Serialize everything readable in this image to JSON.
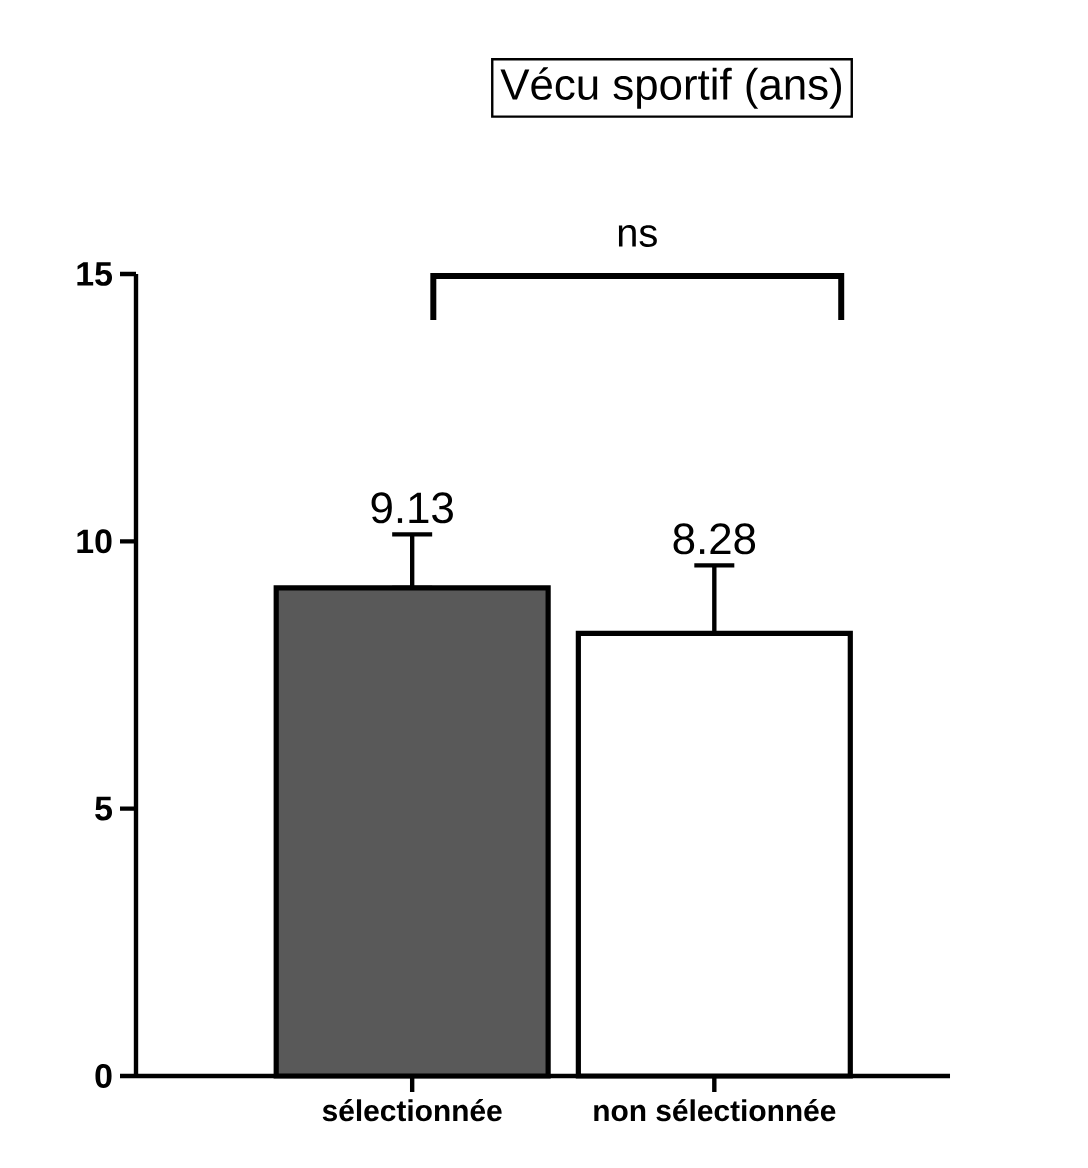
{
  "chart_data": {
    "type": "bar",
    "title": "Vécu sportif (ans)",
    "categories": [
      "sélectionnée",
      "non sélectionnée"
    ],
    "values": [
      9.13,
      8.28
    ],
    "colors": [
      "#595959",
      "#ffffff"
    ],
    "errors": [
      [
        9.13,
        10.13
      ],
      [
        8.28,
        9.55
      ]
    ],
    "data_labels": true,
    "annotations": [
      "ns"
    ],
    "ylim": [
      0,
      15
    ],
    "yticks": [
      0,
      5,
      10,
      15
    ]
  }
}
